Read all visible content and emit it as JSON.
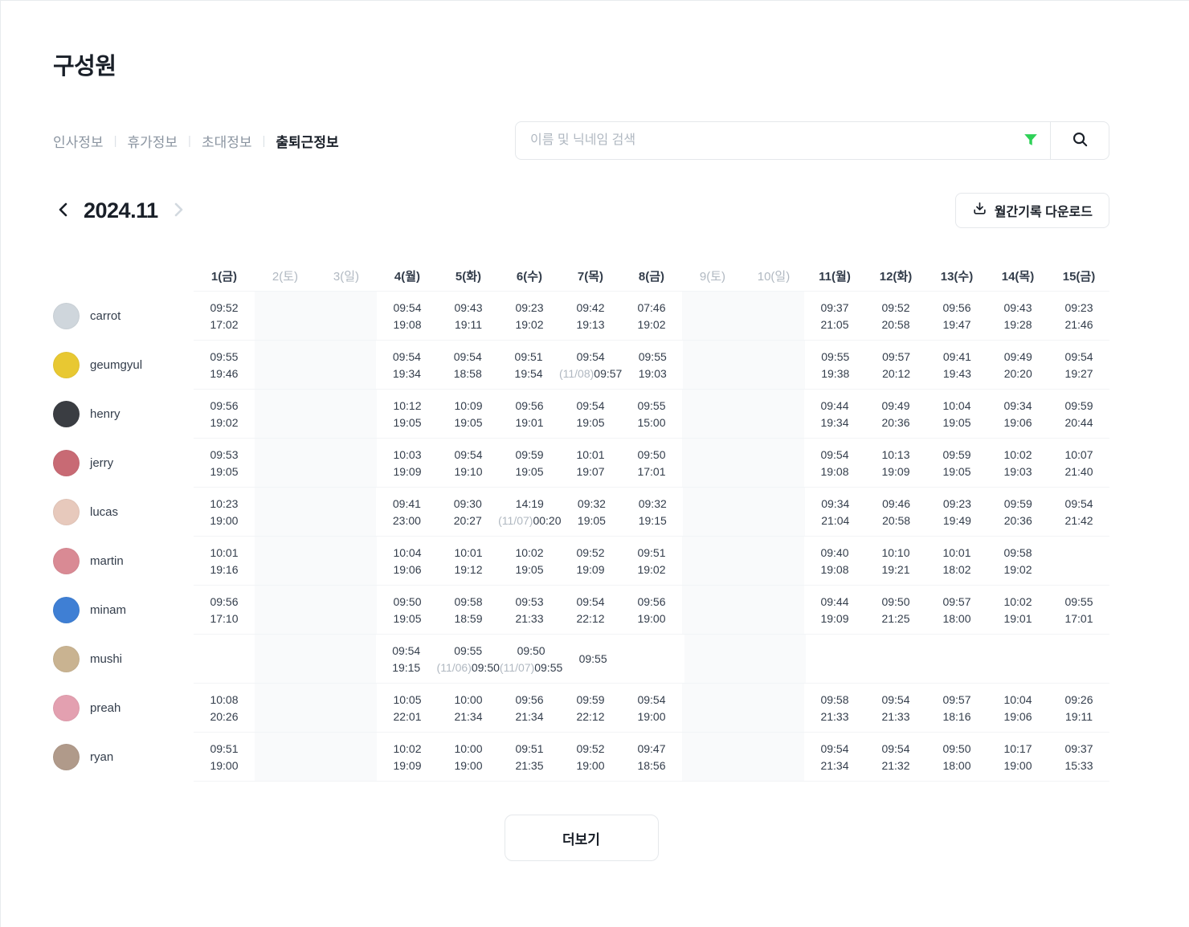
{
  "page": {
    "title": "구성원"
  },
  "tabs": [
    {
      "label": "인사정보",
      "active": false
    },
    {
      "label": "휴가정보",
      "active": false
    },
    {
      "label": "초대정보",
      "active": false
    },
    {
      "label": "출퇴근정보",
      "active": true
    }
  ],
  "search": {
    "placeholder": "이름 및 닉네임 검색"
  },
  "icons": {
    "filter_icon": "funnel",
    "search_icon": "magnifier",
    "download_icon": "tray-arrow-down",
    "prev_icon": "chevron-left",
    "next_icon": "chevron-right"
  },
  "month_nav": {
    "current": "2024.11"
  },
  "download_button": {
    "label": "월간기록 다운로드"
  },
  "more_button": {
    "label": "더보기"
  },
  "colors": {
    "accent_green": "#2ed157",
    "text_dark": "#191f28",
    "text_body": "#333d4b",
    "text_gray": "#8b95a1",
    "text_light_gray": "#b0b8c1",
    "border": "#e5e8eb",
    "row_divider": "#f2f4f6",
    "weekend_bg": "#f9fafb"
  },
  "table": {
    "day_headers": [
      {
        "label": "1(금)",
        "weekend": false
      },
      {
        "label": "2(토)",
        "weekend": true
      },
      {
        "label": "3(일)",
        "weekend": true
      },
      {
        "label": "4(월)",
        "weekend": false
      },
      {
        "label": "5(화)",
        "weekend": false
      },
      {
        "label": "6(수)",
        "weekend": false
      },
      {
        "label": "7(목)",
        "weekend": false
      },
      {
        "label": "8(금)",
        "weekend": false
      },
      {
        "label": "9(토)",
        "weekend": true
      },
      {
        "label": "10(일)",
        "weekend": true
      },
      {
        "label": "11(월)",
        "weekend": false
      },
      {
        "label": "12(화)",
        "weekend": false
      },
      {
        "label": "13(수)",
        "weekend": false
      },
      {
        "label": "14(목)",
        "weekend": false
      },
      {
        "label": "15(금)",
        "weekend": false
      }
    ],
    "rows": [
      {
        "name": "carrot",
        "avatar_color": "#cfd6dc",
        "cells": [
          {
            "in": "09:52",
            "out": "17:02"
          },
          null,
          null,
          {
            "in": "09:54",
            "out": "19:08"
          },
          {
            "in": "09:43",
            "out": "19:11"
          },
          {
            "in": "09:23",
            "out": "19:02"
          },
          {
            "in": "09:42",
            "out": "19:13"
          },
          {
            "in": "07:46",
            "out": "19:02"
          },
          null,
          null,
          {
            "in": "09:37",
            "out": "21:05"
          },
          {
            "in": "09:52",
            "out": "20:58"
          },
          {
            "in": "09:56",
            "out": "19:47"
          },
          {
            "in": "09:43",
            "out": "19:28"
          },
          {
            "in": "09:23",
            "out": "21:46"
          }
        ]
      },
      {
        "name": "geumgyul",
        "avatar_color": "#e8c832",
        "cells": [
          {
            "in": "09:55",
            "out": "19:46"
          },
          null,
          null,
          {
            "in": "09:54",
            "out": "19:34"
          },
          {
            "in": "09:54",
            "out": "18:58"
          },
          {
            "in": "09:51",
            "out": "19:54"
          },
          {
            "in": "09:54",
            "out_prefix": "(11/08)",
            "out": "09:57"
          },
          {
            "in": "09:55",
            "out": "19:03"
          },
          null,
          null,
          {
            "in": "09:55",
            "out": "19:38"
          },
          {
            "in": "09:57",
            "out": "20:12"
          },
          {
            "in": "09:41",
            "out": "19:43"
          },
          {
            "in": "09:49",
            "out": "20:20"
          },
          {
            "in": "09:54",
            "out": "19:27"
          }
        ]
      },
      {
        "name": "henry",
        "avatar_color": "#3a3d42",
        "cells": [
          {
            "in": "09:56",
            "out": "19:02"
          },
          null,
          null,
          {
            "in": "10:12",
            "out": "19:05"
          },
          {
            "in": "10:09",
            "out": "19:05"
          },
          {
            "in": "09:56",
            "out": "19:01"
          },
          {
            "in": "09:54",
            "out": "19:05"
          },
          {
            "in": "09:55",
            "out": "15:00"
          },
          null,
          null,
          {
            "in": "09:44",
            "out": "19:34"
          },
          {
            "in": "09:49",
            "out": "20:36"
          },
          {
            "in": "10:04",
            "out": "19:05"
          },
          {
            "in": "09:34",
            "out": "19:06"
          },
          {
            "in": "09:59",
            "out": "20:44"
          }
        ]
      },
      {
        "name": "jerry",
        "avatar_color": "#c86a74",
        "cells": [
          {
            "in": "09:53",
            "out": "19:05"
          },
          null,
          null,
          {
            "in": "10:03",
            "out": "19:09"
          },
          {
            "in": "09:54",
            "out": "19:10"
          },
          {
            "in": "09:59",
            "out": "19:05"
          },
          {
            "in": "10:01",
            "out": "19:07"
          },
          {
            "in": "09:50",
            "out": "17:01"
          },
          null,
          null,
          {
            "in": "09:54",
            "out": "19:08"
          },
          {
            "in": "10:13",
            "out": "19:09"
          },
          {
            "in": "09:59",
            "out": "19:05"
          },
          {
            "in": "10:02",
            "out": "19:03"
          },
          {
            "in": "10:07",
            "out": "21:40"
          }
        ]
      },
      {
        "name": "lucas",
        "avatar_color": "#e7c9bc",
        "cells": [
          {
            "in": "10:23",
            "out": "19:00"
          },
          null,
          null,
          {
            "in": "09:41",
            "out": "23:00"
          },
          {
            "in": "09:30",
            "out": "20:27"
          },
          {
            "in": "14:19",
            "out_prefix": "(11/07)",
            "out": "00:20"
          },
          {
            "in": "09:32",
            "out": "19:05"
          },
          {
            "in": "09:32",
            "out": "19:15"
          },
          null,
          null,
          {
            "in": "09:34",
            "out": "21:04"
          },
          {
            "in": "09:46",
            "out": "20:58"
          },
          {
            "in": "09:23",
            "out": "19:49"
          },
          {
            "in": "09:59",
            "out": "20:36"
          },
          {
            "in": "09:54",
            "out": "21:42"
          }
        ]
      },
      {
        "name": "martin",
        "avatar_color": "#d98a94",
        "cells": [
          {
            "in": "10:01",
            "out": "19:16"
          },
          null,
          null,
          {
            "in": "10:04",
            "out": "19:06"
          },
          {
            "in": "10:01",
            "out": "19:12"
          },
          {
            "in": "10:02",
            "out": "19:05"
          },
          {
            "in": "09:52",
            "out": "19:09"
          },
          {
            "in": "09:51",
            "out": "19:02"
          },
          null,
          null,
          {
            "in": "09:40",
            "out": "19:08"
          },
          {
            "in": "10:10",
            "out": "19:21"
          },
          {
            "in": "10:01",
            "out": "18:02"
          },
          {
            "in": "09:58",
            "out": "19:02"
          },
          null
        ]
      },
      {
        "name": "minam",
        "avatar_color": "#3f7fd4",
        "cells": [
          {
            "in": "09:56",
            "out": "17:10"
          },
          null,
          null,
          {
            "in": "09:50",
            "out": "19:05"
          },
          {
            "in": "09:58",
            "out": "18:59"
          },
          {
            "in": "09:53",
            "out": "21:33"
          },
          {
            "in": "09:54",
            "out": "22:12"
          },
          {
            "in": "09:56",
            "out": "19:00"
          },
          null,
          null,
          {
            "in": "09:44",
            "out": "19:09"
          },
          {
            "in": "09:50",
            "out": "21:25"
          },
          {
            "in": "09:57",
            "out": "18:00"
          },
          {
            "in": "10:02",
            "out": "19:01"
          },
          {
            "in": "09:55",
            "out": "17:01"
          }
        ]
      },
      {
        "name": "mushi",
        "avatar_color": "#c9b391",
        "cells": [
          null,
          null,
          null,
          {
            "in": "09:54",
            "out": "19:15"
          },
          {
            "in": "09:55",
            "out_prefix": "(11/06)",
            "out": "09:50"
          },
          {
            "in": "09:50",
            "out_prefix": "(11/07)",
            "out": "09:55"
          },
          {
            "in": "09:55"
          },
          null,
          null,
          null,
          null,
          null,
          null,
          null,
          null
        ]
      },
      {
        "name": "preah",
        "avatar_color": "#e3a0b0",
        "cells": [
          {
            "in": "10:08",
            "out": "20:26"
          },
          null,
          null,
          {
            "in": "10:05",
            "out": "22:01"
          },
          {
            "in": "10:00",
            "out": "21:34"
          },
          {
            "in": "09:56",
            "out": "21:34"
          },
          {
            "in": "09:59",
            "out": "22:12"
          },
          {
            "in": "09:54",
            "out": "19:00"
          },
          null,
          null,
          {
            "in": "09:58",
            "out": "21:33"
          },
          {
            "in": "09:54",
            "out": "21:33"
          },
          {
            "in": "09:57",
            "out": "18:16"
          },
          {
            "in": "10:04",
            "out": "19:06"
          },
          {
            "in": "09:26",
            "out": "19:11"
          }
        ]
      },
      {
        "name": "ryan",
        "avatar_color": "#b09a8a",
        "cells": [
          {
            "in": "09:51",
            "out": "19:00"
          },
          null,
          null,
          {
            "in": "10:02",
            "out": "19:09"
          },
          {
            "in": "10:00",
            "out": "19:00"
          },
          {
            "in": "09:51",
            "out": "21:35"
          },
          {
            "in": "09:52",
            "out": "19:00"
          },
          {
            "in": "09:47",
            "out": "18:56"
          },
          null,
          null,
          {
            "in": "09:54",
            "out": "21:34"
          },
          {
            "in": "09:54",
            "out": "21:32"
          },
          {
            "in": "09:50",
            "out": "18:00"
          },
          {
            "in": "10:17",
            "out": "19:00"
          },
          {
            "in": "09:37",
            "out": "15:33"
          }
        ]
      }
    ]
  }
}
